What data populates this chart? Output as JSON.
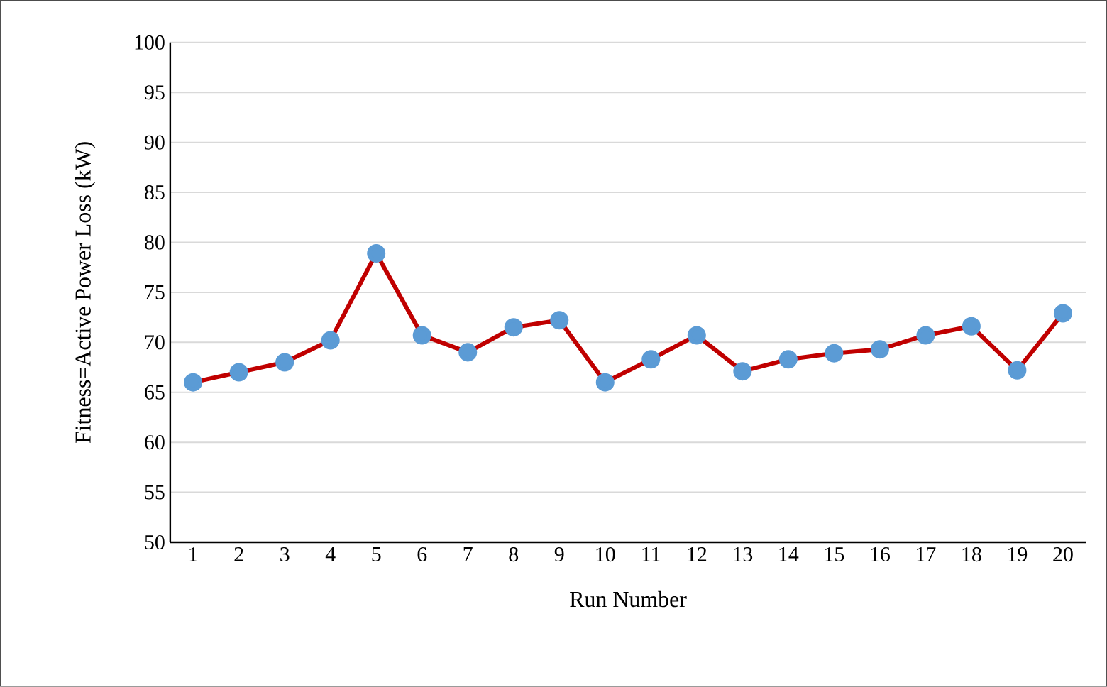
{
  "chart_data": {
    "type": "line",
    "xlabel": "Run Number",
    "ylabel": "Fitness=Active Power Loss (kW)",
    "categories": [
      "1",
      "2",
      "3",
      "4",
      "5",
      "6",
      "7",
      "8",
      "9",
      "10",
      "11",
      "12",
      "13",
      "14",
      "15",
      "16",
      "17",
      "18",
      "19",
      "20"
    ],
    "series": [
      {
        "color": "#c00000",
        "values": [
          66.0,
          67.0,
          68.0,
          70.2,
          78.9,
          70.7,
          69.0,
          71.5,
          72.2,
          66.0,
          68.3,
          70.7,
          67.1,
          68.3,
          68.9,
          69.3,
          70.7,
          71.6,
          67.2,
          72.9
        ]
      }
    ],
    "ylim": [
      50,
      100
    ],
    "yticks": [
      50,
      55,
      60,
      65,
      70,
      75,
      80,
      85,
      90,
      95,
      100
    ],
    "grid": "y",
    "marker": "circle"
  }
}
